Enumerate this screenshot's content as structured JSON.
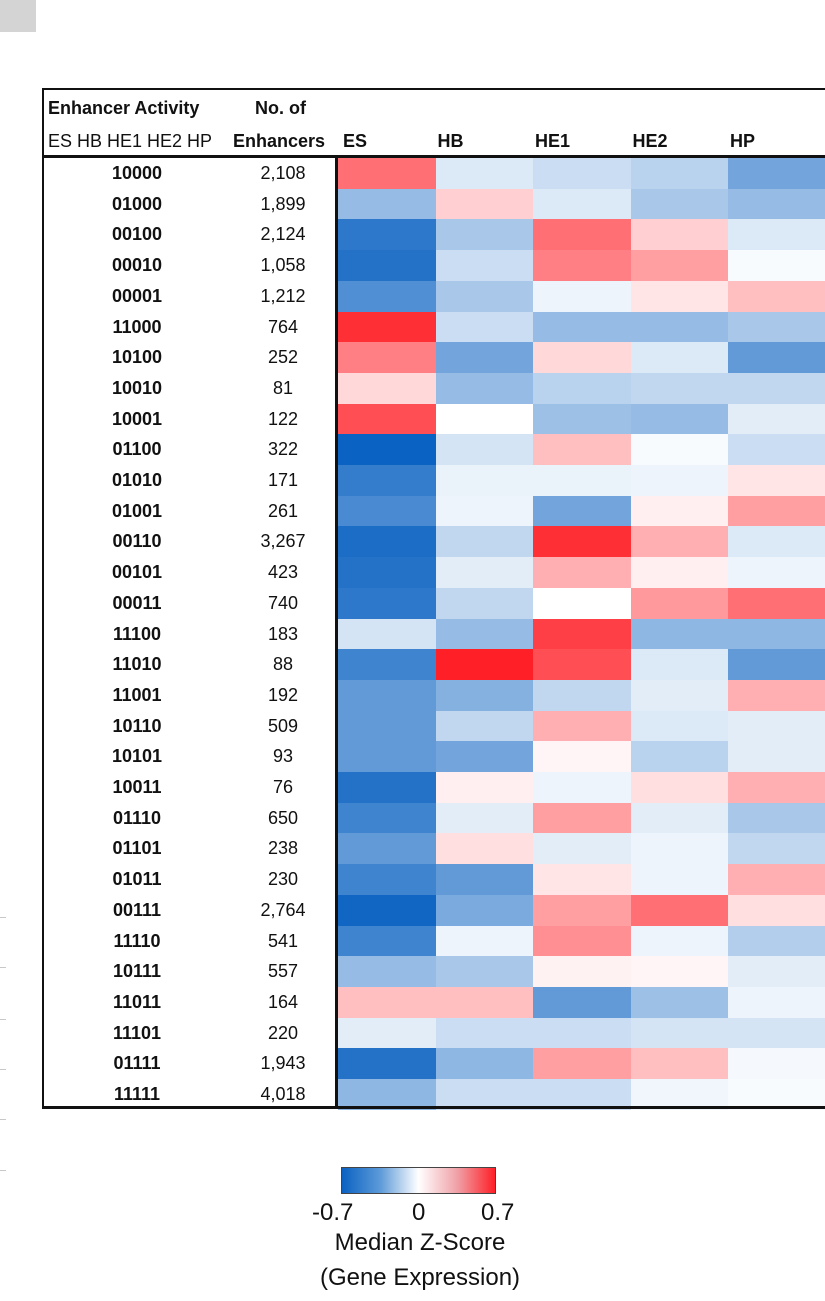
{
  "header": {
    "activity_title": "Enhancer Activity",
    "activity_sub": "ES HB HE1 HE2 HP",
    "count_title": "No. of",
    "count_sub": "Enhancers"
  },
  "chart_data": {
    "type": "heatmap",
    "columns": [
      "ES",
      "HB",
      "HE1",
      "HE2",
      "HP"
    ],
    "rows": [
      {
        "pattern": "10000",
        "count": "2,108",
        "values": [
          0.45,
          -0.1,
          -0.15,
          -0.2,
          -0.4
        ]
      },
      {
        "pattern": "01000",
        "count": "1,899",
        "values": [
          -0.3,
          0.15,
          -0.1,
          -0.25,
          -0.3
        ]
      },
      {
        "pattern": "00100",
        "count": "2,124",
        "values": [
          -0.6,
          -0.25,
          0.45,
          0.15,
          -0.1
        ]
      },
      {
        "pattern": "00010",
        "count": "1,058",
        "values": [
          -0.63,
          -0.15,
          0.4,
          0.3,
          -0.02
        ]
      },
      {
        "pattern": "00001",
        "count": "1,212",
        "values": [
          -0.5,
          -0.25,
          -0.05,
          0.08,
          0.2
        ]
      },
      {
        "pattern": "11000",
        "count": "764",
        "values": [
          0.65,
          -0.15,
          -0.3,
          -0.3,
          -0.25
        ]
      },
      {
        "pattern": "10100",
        "count": "252",
        "values": [
          0.4,
          -0.4,
          0.12,
          -0.1,
          -0.45
        ]
      },
      {
        "pattern": "10010",
        "count": "81",
        "values": [
          0.12,
          -0.3,
          -0.2,
          -0.18,
          -0.18
        ]
      },
      {
        "pattern": "10001",
        "count": "122",
        "values": [
          0.55,
          0.0,
          -0.28,
          -0.3,
          -0.08
        ]
      },
      {
        "pattern": "01100",
        "count": "322",
        "values": [
          -0.7,
          -0.12,
          0.2,
          -0.02,
          -0.15
        ]
      },
      {
        "pattern": "01010",
        "count": "171",
        "values": [
          -0.58,
          -0.06,
          -0.06,
          -0.05,
          0.08
        ]
      },
      {
        "pattern": "01001",
        "count": "261",
        "values": [
          -0.52,
          -0.05,
          -0.4,
          0.05,
          0.3
        ]
      },
      {
        "pattern": "00110",
        "count": "3,267",
        "values": [
          -0.65,
          -0.18,
          0.65,
          0.25,
          -0.1
        ]
      },
      {
        "pattern": "00101",
        "count": "423",
        "values": [
          -0.63,
          -0.08,
          0.25,
          0.05,
          -0.05
        ]
      },
      {
        "pattern": "00011",
        "count": "740",
        "values": [
          -0.6,
          -0.18,
          0.0,
          0.32,
          0.45
        ]
      },
      {
        "pattern": "11100",
        "count": "183",
        "values": [
          -0.12,
          -0.3,
          0.6,
          -0.32,
          -0.32
        ]
      },
      {
        "pattern": "11010",
        "count": "88",
        "values": [
          -0.55,
          0.7,
          0.55,
          -0.1,
          -0.45
        ]
      },
      {
        "pattern": "11001",
        "count": "192",
        "values": [
          -0.45,
          -0.35,
          -0.18,
          -0.08,
          0.25
        ]
      },
      {
        "pattern": "10110",
        "count": "509",
        "values": [
          -0.45,
          -0.18,
          0.25,
          -0.1,
          -0.08
        ]
      },
      {
        "pattern": "10101",
        "count": "93",
        "values": [
          -0.45,
          -0.4,
          0.03,
          -0.2,
          -0.08
        ]
      },
      {
        "pattern": "10011",
        "count": "76",
        "values": [
          -0.63,
          0.05,
          -0.05,
          0.1,
          0.25
        ]
      },
      {
        "pattern": "01110",
        "count": "650",
        "values": [
          -0.55,
          -0.08,
          0.3,
          -0.08,
          -0.25
        ]
      },
      {
        "pattern": "01101",
        "count": "238",
        "values": [
          -0.45,
          0.1,
          -0.08,
          -0.05,
          -0.18
        ]
      },
      {
        "pattern": "01011",
        "count": "230",
        "values": [
          -0.55,
          -0.45,
          0.08,
          -0.05,
          0.25
        ]
      },
      {
        "pattern": "00111",
        "count": "2,764",
        "values": [
          -0.68,
          -0.38,
          0.3,
          0.45,
          0.1
        ]
      },
      {
        "pattern": "11110",
        "count": "541",
        "values": [
          -0.55,
          -0.05,
          0.35,
          -0.05,
          -0.22
        ]
      },
      {
        "pattern": "10111",
        "count": "557",
        "values": [
          -0.3,
          -0.25,
          0.04,
          0.03,
          -0.08
        ]
      },
      {
        "pattern": "11011",
        "count": "164",
        "values": [
          0.2,
          0.2,
          -0.45,
          -0.28,
          -0.05
        ]
      },
      {
        "pattern": "11101",
        "count": "220",
        "values": [
          -0.08,
          -0.15,
          -0.15,
          -0.12,
          -0.12
        ]
      },
      {
        "pattern": "01111",
        "count": "1,943",
        "values": [
          -0.63,
          -0.32,
          0.3,
          0.2,
          -0.03
        ]
      },
      {
        "pattern": "11111",
        "count": "4,018",
        "values": [
          -0.32,
          -0.15,
          -0.15,
          -0.04,
          -0.02
        ]
      }
    ],
    "colorscale": {
      "min": -0.7,
      "mid": 0,
      "max": 0.7,
      "low_color": "#0a62c2",
      "mid_color": "#ffffff",
      "high_color": "#ff1f27"
    },
    "legend": {
      "ticks": [
        "-0.7",
        "0",
        "0.7"
      ],
      "title_line1": "Median Z-Score",
      "title_line2": "(Gene Expression)"
    }
  }
}
